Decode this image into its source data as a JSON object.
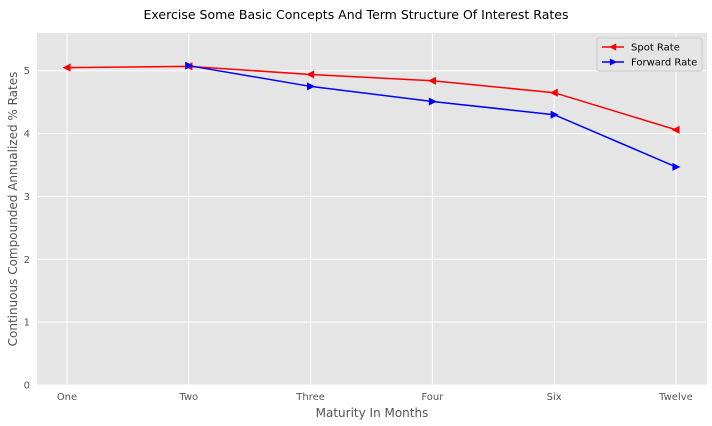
{
  "chart_data": {
    "type": "line",
    "title": "Exercise Some Basic Concepts And Term Structure Of Interest Rates",
    "xlabel": "Maturity In Months",
    "ylabel": "Continuous Compounded Annualized % Rates",
    "categories": [
      "One",
      "Two",
      "Three",
      "Four",
      "Six",
      "Twelve"
    ],
    "yticks": [
      0,
      1,
      2,
      3,
      4,
      5
    ],
    "ylim": [
      0,
      5.6
    ],
    "grid": true,
    "legend_position": "top-right",
    "background": "#e5e5e5",
    "series": [
      {
        "name": "Spot Rate",
        "color": "#ff0000",
        "marker": "triangle-left",
        "values": [
          5.05,
          5.07,
          4.94,
          4.84,
          4.65,
          4.06
        ]
      },
      {
        "name": "Forward Rate",
        "color": "#0000ff",
        "marker": "triangle-right",
        "values": [
          null,
          5.08,
          4.75,
          4.51,
          4.3,
          3.47
        ]
      }
    ]
  }
}
